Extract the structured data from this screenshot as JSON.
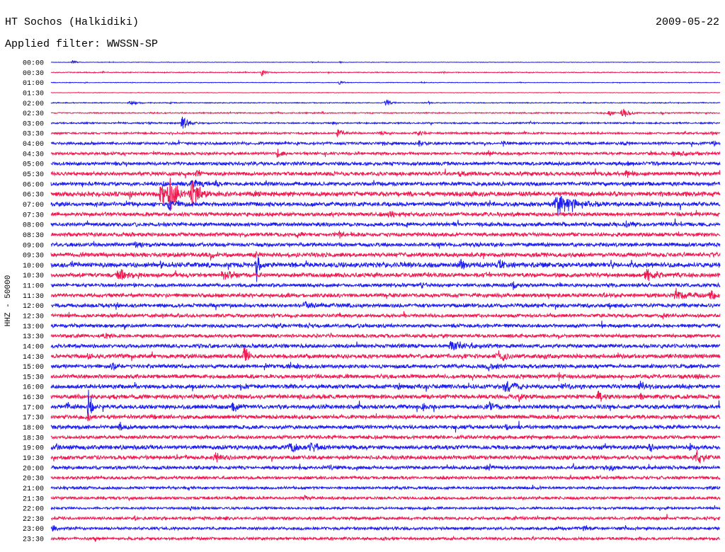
{
  "chart_data": {
    "type": "line",
    "title": "HT Sochos (Halkidiki)",
    "subtitle": "Applied filter: WWSSN-SP",
    "date": "2009-05-22",
    "ylabel": "HHZ - 50000",
    "xlim": [
      0,
      30
    ],
    "grid": false,
    "series_colors": [
      "#1e1ef0",
      "#f01950"
    ],
    "rows": [
      {
        "label": "00:00",
        "noise": 0.25,
        "events": [
          {
            "t": 0.98,
            "amp": 2.5,
            "dur": 0.15
          },
          {
            "t": 11.68,
            "amp": 1.2,
            "dur": 0.1
          },
          {
            "t": 12.95,
            "amp": 1,
            "dur": 0.1
          }
        ]
      },
      {
        "label": "00:30",
        "noise": 0.45,
        "events": [
          {
            "t": 9.46,
            "amp": 5,
            "dur": 0.12
          },
          {
            "t": 2.32,
            "amp": 1.5,
            "dur": 0.1
          },
          {
            "t": 17.56,
            "amp": 1.5,
            "dur": 0.2
          },
          {
            "t": 7.9,
            "amp": 1.2,
            "dur": 0.1
          }
        ]
      },
      {
        "label": "01:00",
        "noise": 0.3,
        "events": [
          {
            "t": 12.95,
            "amp": 2.5,
            "dur": 0.2
          },
          {
            "t": 1.52,
            "amp": 1,
            "dur": 0.1
          },
          {
            "t": 16.6,
            "amp": 1,
            "dur": 0.15
          }
        ]
      },
      {
        "label": "01:30",
        "noise": 0.25,
        "events": [
          {
            "t": 22.79,
            "amp": 1,
            "dur": 0.1
          }
        ]
      },
      {
        "label": "02:00",
        "noise": 0.5,
        "events": [
          {
            "t": 3.59,
            "amp": 2.5,
            "dur": 0.3
          },
          {
            "t": 15.02,
            "amp": 4.5,
            "dur": 0.2
          },
          {
            "t": 5.33,
            "amp": 1.5,
            "dur": 0.1
          },
          {
            "t": 16.92,
            "amp": 1.5,
            "dur": 0.15
          }
        ]
      },
      {
        "label": "02:30",
        "noise": 0.6,
        "events": [
          {
            "t": 25.65,
            "amp": 5,
            "dur": 0.35
          },
          {
            "t": 25.02,
            "amp": 3,
            "dur": 0.2
          },
          {
            "t": 27.4,
            "amp": 2,
            "dur": 0.15
          },
          {
            "t": 12.16,
            "amp": 1.5,
            "dur": 0.1
          }
        ]
      },
      {
        "label": "03:00",
        "noise": 0.8,
        "events": [
          {
            "t": 5.9,
            "amp": 7,
            "dur": 0.3
          },
          {
            "t": 4.38,
            "amp": 2,
            "dur": 0.15
          },
          {
            "t": 12.63,
            "amp": 2,
            "dur": 0.15
          },
          {
            "t": 23.75,
            "amp": 2,
            "dur": 0.15
          }
        ]
      },
      {
        "label": "03:30",
        "noise": 1.0,
        "events": [
          {
            "t": 12.89,
            "amp": 5,
            "dur": 0.3
          },
          {
            "t": 14.86,
            "amp": 2.5,
            "dur": 0.3
          },
          {
            "t": 16.44,
            "amp": 2.5,
            "dur": 0.4
          },
          {
            "t": 29.62,
            "amp": 2,
            "dur": 0.15
          }
        ]
      },
      {
        "label": "04:00",
        "noise": 1.4,
        "events": [
          {
            "t": 15.02,
            "amp": 3,
            "dur": 0.3
          },
          {
            "t": 16.51,
            "amp": 3,
            "dur": 0.3
          },
          {
            "t": 20.25,
            "amp": 4,
            "dur": 0.2
          },
          {
            "t": 29.68,
            "amp": 3.5,
            "dur": 0.2
          },
          {
            "t": 25.65,
            "amp": 2.5,
            "dur": 0.2
          }
        ]
      },
      {
        "label": "04:30",
        "noise": 1.4,
        "events": [
          {
            "t": 10.16,
            "amp": 5,
            "dur": 0.2
          },
          {
            "t": 19.62,
            "amp": 3,
            "dur": 0.3
          },
          {
            "t": 28.03,
            "amp": 4,
            "dur": 0.6
          },
          {
            "t": 26.92,
            "amp": 2,
            "dur": 0.2
          }
        ]
      },
      {
        "label": "05:00",
        "noise": 1.8,
        "events": [
          {
            "t": 25.81,
            "amp": 3,
            "dur": 0.3
          },
          {
            "t": 3.43,
            "amp": 2,
            "dur": 0.2
          },
          {
            "t": 13.59,
            "amp": 2,
            "dur": 0.2
          }
        ]
      },
      {
        "label": "05:30",
        "noise": 2.0,
        "events": [
          {
            "t": 6.54,
            "amp": 5,
            "dur": 0.15
          },
          {
            "t": 25.81,
            "amp": 4,
            "dur": 0.3
          },
          {
            "t": 18.35,
            "amp": 3,
            "dur": 0.3
          }
        ]
      },
      {
        "label": "06:00",
        "noise": 2.0,
        "events": [
          {
            "t": 6.35,
            "amp": 6,
            "dur": 0.3
          },
          {
            "t": 4.95,
            "amp": 4,
            "dur": 0.3
          },
          {
            "t": 7.4,
            "amp": 3,
            "dur": 0.2
          }
        ]
      },
      {
        "label": "06:30",
        "noise": 2.5,
        "events": [
          {
            "t": 4.95,
            "amp": 14,
            "dur": 0.35
          },
          {
            "t": 5.33,
            "amp": 22,
            "dur": 0.25
          },
          {
            "t": 6.35,
            "amp": 14,
            "dur": 0.4
          },
          {
            "t": 3.52,
            "amp": 5,
            "dur": 0.2
          },
          {
            "t": 9.14,
            "amp": 3,
            "dur": 0.2
          }
        ]
      },
      {
        "label": "07:00",
        "noise": 2.2,
        "events": [
          {
            "t": 5.33,
            "amp": 7,
            "dur": 0.4
          },
          {
            "t": 22.79,
            "amp": 9,
            "dur": 0.9
          },
          {
            "t": 23.11,
            "amp": 6,
            "dur": 0.5
          }
        ]
      },
      {
        "label": "07:30",
        "noise": 2.0,
        "events": [
          {
            "t": 15.17,
            "amp": 3,
            "dur": 0.5
          },
          {
            "t": 7.87,
            "amp": 2,
            "dur": 0.2
          }
        ]
      },
      {
        "label": "08:00",
        "noise": 2.0,
        "events": [
          {
            "t": 25.81,
            "amp": 3,
            "dur": 0.2
          }
        ]
      },
      {
        "label": "08:30",
        "noise": 2.0,
        "events": [
          {
            "t": 12.95,
            "amp": 6,
            "dur": 0.15
          },
          {
            "t": 11.05,
            "amp": 3,
            "dur": 0.3
          }
        ]
      },
      {
        "label": "09:00",
        "noise": 2.0,
        "events": [
          {
            "t": 3.81,
            "amp": 5,
            "dur": 0.3
          }
        ]
      },
      {
        "label": "09:30",
        "noise": 2.2,
        "events": [
          {
            "t": 7.17,
            "amp": 5,
            "dur": 0.1
          },
          {
            "t": 9.14,
            "amp": 6,
            "dur": 0.1
          }
        ]
      },
      {
        "label": "10:00",
        "noise": 2.5,
        "events": [
          {
            "t": 9.21,
            "amp": 20,
            "dur": 0.12
          },
          {
            "t": 18.35,
            "amp": 10,
            "dur": 0.15
          },
          {
            "t": 20.1,
            "amp": 6,
            "dur": 0.2
          },
          {
            "t": 4.86,
            "amp": 4,
            "dur": 0.4
          },
          {
            "t": 0.89,
            "amp": 3,
            "dur": 0.5
          }
        ]
      },
      {
        "label": "10:30",
        "noise": 2.2,
        "events": [
          {
            "t": 3.05,
            "amp": 8,
            "dur": 0.4
          },
          {
            "t": 7.71,
            "amp": 6,
            "dur": 0.4
          },
          {
            "t": 26.76,
            "amp": 6,
            "dur": 0.5
          },
          {
            "t": 19.46,
            "amp": 4,
            "dur": 0.3
          }
        ]
      },
      {
        "label": "11:00",
        "noise": 1.8,
        "events": [
          {
            "t": 20.73,
            "amp": 3.5,
            "dur": 0.3
          },
          {
            "t": 16.6,
            "amp": 3,
            "dur": 0.2
          }
        ]
      },
      {
        "label": "11:30",
        "noise": 2.0,
        "events": [
          {
            "t": 28.03,
            "amp": 6,
            "dur": 0.5
          },
          {
            "t": 29.62,
            "amp": 5,
            "dur": 0.3
          },
          {
            "t": 10.73,
            "amp": 3,
            "dur": 0.2
          }
        ]
      },
      {
        "label": "12:00",
        "noise": 2.0,
        "events": [
          {
            "t": 11.37,
            "amp": 4,
            "dur": 0.4
          },
          {
            "t": 25.02,
            "amp": 3,
            "dur": 0.2
          }
        ]
      },
      {
        "label": "12:30",
        "noise": 1.8,
        "events": [
          {
            "t": 27.4,
            "amp": 3,
            "dur": 0.3
          },
          {
            "t": 2.16,
            "amp": 2,
            "dur": 0.2
          }
        ]
      },
      {
        "label": "13:00",
        "noise": 1.8,
        "events": [
          {
            "t": 10.1,
            "amp": 4,
            "dur": 0.3
          },
          {
            "t": 11.52,
            "amp": 3,
            "dur": 0.3
          },
          {
            "t": 24.7,
            "amp": 6,
            "dur": 0.05
          }
        ]
      },
      {
        "label": "13:30",
        "noise": 1.8,
        "events": [
          {
            "t": 2.48,
            "amp": 4,
            "dur": 0.3
          },
          {
            "t": 12.48,
            "amp": 3,
            "dur": 0.2
          }
        ]
      },
      {
        "label": "14:00",
        "noise": 2.0,
        "events": [
          {
            "t": 18.03,
            "amp": 6,
            "dur": 0.5
          },
          {
            "t": 13.27,
            "amp": 3,
            "dur": 0.05
          }
        ]
      },
      {
        "label": "14:30",
        "noise": 2.2,
        "events": [
          {
            "t": 8.67,
            "amp": 11,
            "dur": 0.2
          },
          {
            "t": 20.13,
            "amp": 6,
            "dur": 0.4
          },
          {
            "t": 1.68,
            "amp": 3,
            "dur": 0.3
          },
          {
            "t": 22.16,
            "amp": 3,
            "dur": 0.3
          }
        ]
      },
      {
        "label": "15:00",
        "noise": 2.0,
        "events": [
          {
            "t": 2.73,
            "amp": 5,
            "dur": 0.2
          },
          {
            "t": 10.73,
            "amp": 4,
            "dur": 0.4
          },
          {
            "t": 19.62,
            "amp": 5,
            "dur": 0.4
          },
          {
            "t": 11.68,
            "amp": 3,
            "dur": 0.05
          }
        ]
      },
      {
        "label": "15:30",
        "noise": 2.0,
        "events": [
          {
            "t": 22.79,
            "amp": 4,
            "dur": 0.15
          },
          {
            "t": 28.98,
            "amp": 3,
            "dur": 0.2
          }
        ]
      },
      {
        "label": "16:00",
        "noise": 2.2,
        "events": [
          {
            "t": 20.41,
            "amp": 7,
            "dur": 0.5
          },
          {
            "t": 26.44,
            "amp": 6,
            "dur": 0.3
          },
          {
            "t": 22.95,
            "amp": 5,
            "dur": 0.2
          },
          {
            "t": 15.49,
            "amp": 4,
            "dur": 0.3
          },
          {
            "t": 8.51,
            "amp": 3,
            "dur": 0.3
          }
        ]
      },
      {
        "label": "16:30",
        "noise": 2.2,
        "events": [
          {
            "t": 24.54,
            "amp": 6,
            "dur": 0.3
          },
          {
            "t": 21.05,
            "amp": 5,
            "dur": 0.3
          },
          {
            "t": 26.44,
            "amp": 4,
            "dur": 0.2
          },
          {
            "t": 7.24,
            "amp": 3,
            "dur": 0.2
          }
        ]
      },
      {
        "label": "17:00",
        "noise": 2.2,
        "events": [
          {
            "t": 1.68,
            "amp": 28,
            "dur": 0.12
          },
          {
            "t": 8.19,
            "amp": 5,
            "dur": 0.3
          },
          {
            "t": 16.7,
            "amp": 4,
            "dur": 0.2
          },
          {
            "t": 19.62,
            "amp": 4,
            "dur": 0.6
          },
          {
            "t": 0.73,
            "amp": 4,
            "dur": 0.4
          }
        ]
      },
      {
        "label": "17:30",
        "noise": 2.0,
        "events": [
          {
            "t": 1.68,
            "amp": 6,
            "dur": 0.05
          },
          {
            "t": 4.54,
            "amp": 3,
            "dur": 0.2
          }
        ]
      },
      {
        "label": "18:00",
        "noise": 2.0,
        "events": [
          {
            "t": 3.11,
            "amp": 5,
            "dur": 0.3
          },
          {
            "t": 20.41,
            "amp": 4,
            "dur": 0.15
          }
        ]
      },
      {
        "label": "18:30",
        "noise": 1.8,
        "events": [
          {
            "t": 19.94,
            "amp": 2,
            "dur": 0.2
          }
        ]
      },
      {
        "label": "19:00",
        "noise": 2.2,
        "events": [
          {
            "t": 10.73,
            "amp": 6,
            "dur": 0.4
          },
          {
            "t": 11.68,
            "amp": 5,
            "dur": 0.5
          },
          {
            "t": 26.86,
            "amp": 12,
            "dur": 0.15
          },
          {
            "t": 28.67,
            "amp": 4,
            "dur": 0.2
          },
          {
            "t": 0.25,
            "amp": 4,
            "dur": 0.3
          },
          {
            "t": 24.86,
            "amp": 3,
            "dur": 0.4
          }
        ]
      },
      {
        "label": "19:30",
        "noise": 2.0,
        "events": [
          {
            "t": 7.4,
            "amp": 6,
            "dur": 0.35
          },
          {
            "t": 28.98,
            "amp": 8,
            "dur": 0.35
          },
          {
            "t": 5.33,
            "amp": 2,
            "dur": 0.2
          }
        ]
      },
      {
        "label": "20:00",
        "noise": 1.8,
        "events": [
          {
            "t": 19.56,
            "amp": 6,
            "dur": 0.15
          },
          {
            "t": 25.02,
            "amp": 4,
            "dur": 0.3
          },
          {
            "t": 12.48,
            "amp": 3,
            "dur": 0.2
          }
        ]
      },
      {
        "label": "20:30",
        "noise": 1.5,
        "events": [
          {
            "t": 24.54,
            "amp": 3,
            "dur": 0.2
          },
          {
            "t": 17.56,
            "amp": 2,
            "dur": 0.2
          }
        ]
      },
      {
        "label": "21:00",
        "noise": 1.4,
        "events": [
          {
            "t": 29.62,
            "amp": 3,
            "dur": 0.3
          },
          {
            "t": 15.49,
            "amp": 2,
            "dur": 0.2
          }
        ]
      },
      {
        "label": "21:30",
        "noise": 1.4,
        "events": [
          {
            "t": 3.43,
            "amp": 2,
            "dur": 0.2
          },
          {
            "t": 11.37,
            "amp": 2.5,
            "dur": 0.2
          }
        ]
      },
      {
        "label": "22:00",
        "noise": 1.2,
        "events": [
          {
            "t": 6.29,
            "amp": 3,
            "dur": 0.2
          },
          {
            "t": 16.76,
            "amp": 2,
            "dur": 0.2
          }
        ]
      },
      {
        "label": "22:30",
        "noise": 1.5,
        "events": [
          {
            "t": 29.46,
            "amp": 3,
            "dur": 0.3
          },
          {
            "t": 7.87,
            "amp": 2.5,
            "dur": 0.2
          },
          {
            "t": 3.75,
            "amp": 2,
            "dur": 0.2
          }
        ]
      },
      {
        "label": "23:00",
        "noise": 1.5,
        "events": [
          {
            "t": 23.9,
            "amp": 4,
            "dur": 0.3
          },
          {
            "t": 0.1,
            "amp": 4,
            "dur": 0.2
          },
          {
            "t": 15.49,
            "amp": 2,
            "dur": 0.2
          }
        ]
      },
      {
        "label": "23:30",
        "noise": 1.4,
        "events": [
          {
            "t": 2.0,
            "amp": 2.5,
            "dur": 0.2
          },
          {
            "t": 14.86,
            "amp": 2,
            "dur": 0.2
          }
        ]
      }
    ]
  }
}
